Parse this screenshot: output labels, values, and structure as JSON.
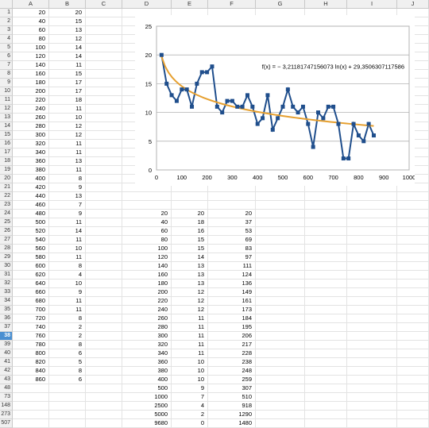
{
  "columns": [
    "A",
    "B",
    "C",
    "D",
    "E",
    "F",
    "G",
    "H",
    "I",
    "J"
  ],
  "row_numbers": [
    "1",
    "2",
    "3",
    "4",
    "5",
    "6",
    "7",
    "8",
    "9",
    "10",
    "11",
    "12",
    "13",
    "14",
    "15",
    "16",
    "17",
    "18",
    "19",
    "20",
    "21",
    "22",
    "23",
    "24",
    "25",
    "26",
    "27",
    "28",
    "29",
    "30",
    "31",
    "32",
    "33",
    "34",
    "35",
    "36",
    "37",
    "38",
    "39",
    "40",
    "41",
    "42",
    "43",
    "48",
    "73",
    "148",
    "273",
    "507"
  ],
  "selected_row": "38",
  "col_a": [
    "20",
    "40",
    "60",
    "80",
    "100",
    "120",
    "140",
    "160",
    "180",
    "200",
    "220",
    "240",
    "260",
    "280",
    "300",
    "320",
    "340",
    "360",
    "380",
    "400",
    "420",
    "440",
    "460",
    "480",
    "500",
    "520",
    "540",
    "560",
    "580",
    "600",
    "620",
    "640",
    "660",
    "680",
    "700",
    "720",
    "740",
    "760",
    "780",
    "800",
    "820",
    "840",
    "860"
  ],
  "col_b": [
    "20",
    "15",
    "13",
    "12",
    "14",
    "14",
    "11",
    "15",
    "17",
    "17",
    "18",
    "11",
    "10",
    "12",
    "12",
    "11",
    "11",
    "13",
    "11",
    "8",
    "9",
    "13",
    "7",
    "9",
    "11",
    "14",
    "11",
    "10",
    "11",
    "8",
    "4",
    "10",
    "9",
    "11",
    "11",
    "8",
    "2",
    "2",
    "8",
    "6",
    "5",
    "8",
    "6"
  ],
  "table_d": [
    "20",
    "40",
    "60",
    "80",
    "100",
    "120",
    "140",
    "160",
    "180",
    "200",
    "220",
    "240",
    "260",
    "280",
    "300",
    "320",
    "340",
    "360",
    "380",
    "400",
    "500",
    "1000",
    "2500",
    "5000",
    "9680"
  ],
  "table_e": [
    "20",
    "18",
    "16",
    "15",
    "15",
    "14",
    "13",
    "13",
    "13",
    "12",
    "12",
    "12",
    "11",
    "11",
    "11",
    "11",
    "11",
    "10",
    "10",
    "10",
    "9",
    "7",
    "4",
    "2",
    "0"
  ],
  "table_f": [
    "20",
    "37",
    "53",
    "69",
    "83",
    "97",
    "111",
    "124",
    "136",
    "149",
    "161",
    "173",
    "184",
    "195",
    "206",
    "217",
    "228",
    "238",
    "248",
    "259",
    "307",
    "510",
    "918",
    "1290",
    "1480"
  ],
  "chart_data": {
    "type": "scatter",
    "xlim": [
      0,
      1000
    ],
    "ylim": [
      0,
      25
    ],
    "x_ticks": [
      "0",
      "100",
      "200",
      "300",
      "400",
      "500",
      "600",
      "700",
      "800",
      "900",
      "1000"
    ],
    "y_ticks": [
      "0",
      "5",
      "10",
      "15",
      "20",
      "25"
    ],
    "grid": true,
    "series": [
      {
        "x": [
          20,
          40,
          60,
          80,
          100,
          120,
          140,
          160,
          180,
          200,
          220,
          240,
          260,
          280,
          300,
          320,
          340,
          360,
          380,
          400,
          420,
          440,
          460,
          480,
          500,
          520,
          540,
          560,
          580,
          600,
          620,
          640,
          660,
          680,
          700,
          720,
          740,
          760,
          780,
          800,
          820,
          840,
          860
        ],
        "values": [
          20,
          15,
          13,
          12,
          14,
          14,
          11,
          15,
          17,
          17,
          18,
          11,
          10,
          12,
          12,
          11,
          11,
          13,
          11,
          8,
          9,
          13,
          7,
          9,
          11,
          14,
          11,
          10,
          11,
          8,
          4,
          10,
          9,
          11,
          11,
          8,
          2,
          2,
          8,
          6,
          5,
          8,
          6
        ],
        "color": "#1f4e8c"
      }
    ],
    "trendline": {
      "a": -3.21181747156073,
      "b": 29.3506307117586,
      "x_range": [
        20,
        860
      ],
      "color": "#e6a030",
      "equation": "f(x) = − 3,21181747156073 ln(x) + 29,3506307117586"
    }
  }
}
